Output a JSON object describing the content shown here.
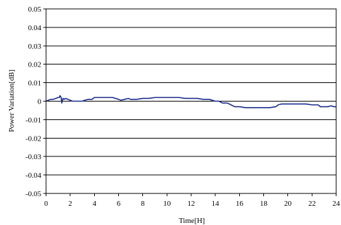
{
  "chart_data": {
    "type": "line",
    "title": "",
    "xlabel": "Time[H]",
    "ylabel": "Power Variation[dB]",
    "xlim": [
      0,
      24
    ],
    "ylim": [
      -0.05,
      0.05
    ],
    "x_ticks": [
      "0",
      "2",
      "4",
      "6",
      "8",
      "10",
      "12",
      "14",
      "16",
      "18",
      "20",
      "22",
      "24"
    ],
    "y_ticks": [
      "0.05",
      "0.04",
      "0.03",
      "0.02",
      "0.01",
      "0",
      "-0.01",
      "-0.02",
      "-0.03",
      "-0.04",
      "-0.05"
    ],
    "grid": "horizontal",
    "legend": "none",
    "colors": {
      "series": "#1a2a8c",
      "grid": "#000000"
    },
    "series": [
      {
        "x": [
          0,
          0.2,
          0.4,
          0.6,
          0.8,
          1.0,
          1.1,
          1.15,
          1.25,
          1.3,
          1.4,
          1.5,
          1.6,
          1.8,
          2.0,
          2.2,
          2.5,
          2.8,
          3.0,
          3.2,
          3.5,
          3.8,
          4.0,
          4.5,
          5.0,
          5.5,
          6.0,
          6.2,
          6.5,
          6.8,
          7.0,
          7.5,
          8.0,
          8.5,
          9.0,
          9.5,
          10.0,
          10.5,
          11.0,
          11.5,
          12.0,
          12.5,
          13.0,
          13.5,
          14.0,
          14.3,
          14.6,
          15.0,
          15.3,
          15.6,
          16.0,
          16.5,
          17.0,
          17.5,
          18.0,
          18.5,
          19.0,
          19.2,
          19.5,
          20.0,
          20.5,
          21.0,
          21.5,
          22.0,
          22.5,
          22.7,
          23.0,
          23.3,
          23.6,
          23.8,
          24.0
        ],
        "y": [
          0.0,
          0.0005,
          0.001,
          0.001,
          0.0015,
          0.002,
          0.002,
          0.003,
          0.002,
          -0.001,
          0.0015,
          0.001,
          0.0015,
          0.001,
          0.0005,
          0.0,
          0.0,
          0.0,
          0.0,
          0.0005,
          0.001,
          0.001,
          0.002,
          0.002,
          0.002,
          0.002,
          0.001,
          0.0005,
          0.001,
          0.0015,
          0.001,
          0.001,
          0.0015,
          0.0015,
          0.002,
          0.002,
          0.002,
          0.002,
          0.002,
          0.0015,
          0.0015,
          0.0015,
          0.001,
          0.001,
          0.0,
          0.0,
          -0.001,
          -0.001,
          -0.002,
          -0.003,
          -0.003,
          -0.0035,
          -0.0035,
          -0.0035,
          -0.0035,
          -0.0035,
          -0.003,
          -0.002,
          -0.0015,
          -0.0015,
          -0.0015,
          -0.0015,
          -0.0015,
          -0.002,
          -0.002,
          -0.003,
          -0.003,
          -0.003,
          -0.0025,
          -0.003,
          -0.003
        ]
      }
    ]
  }
}
